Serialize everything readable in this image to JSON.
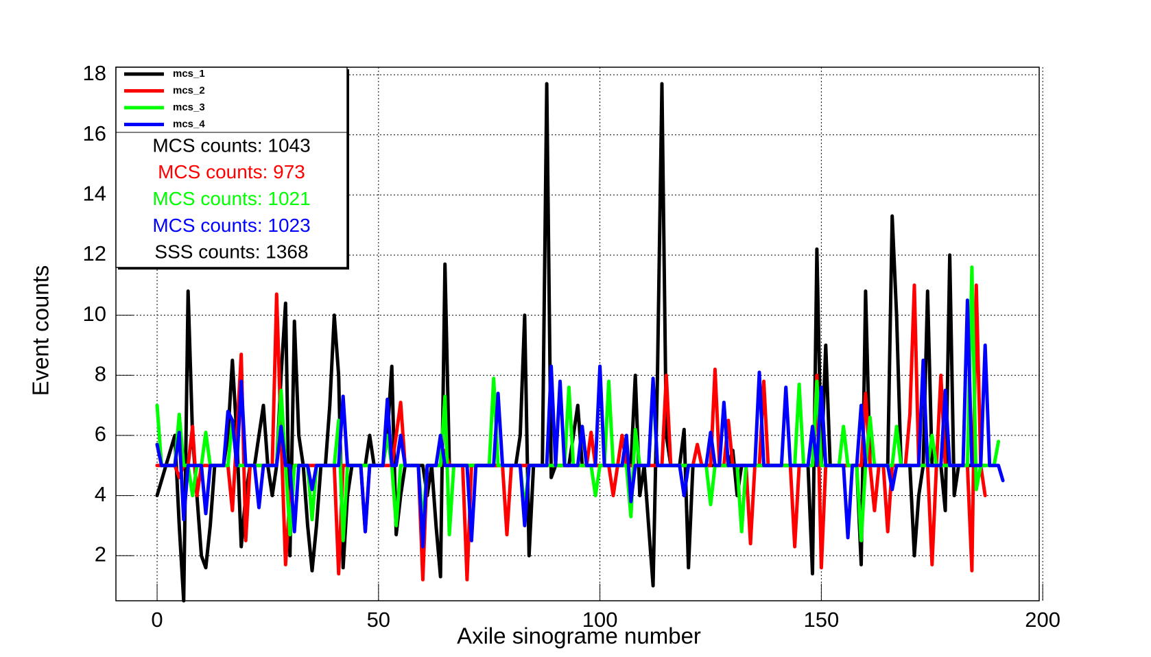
{
  "chart_data": {
    "type": "line",
    "xlabel": "Axile sinograme number",
    "ylabel": "Event counts",
    "xlim": [
      -9.3,
      199.2
    ],
    "ylim": [
      0.5,
      18.25
    ],
    "xticks": [
      0,
      50,
      100,
      150,
      200
    ],
    "yticks": [
      2,
      4,
      6,
      8,
      10,
      12,
      14,
      16,
      18
    ],
    "grid": true,
    "legend": "upper left",
    "x": [
      0,
      1,
      2,
      3,
      4,
      5,
      6,
      7,
      8,
      9,
      10,
      11,
      12,
      13,
      14,
      15,
      16,
      17,
      18,
      19,
      20,
      21,
      22,
      23,
      24,
      25,
      26,
      27,
      28,
      29,
      30,
      31,
      32,
      33,
      34,
      35,
      36,
      37,
      38,
      39,
      40,
      41,
      42,
      43,
      44,
      45,
      46,
      47,
      48,
      49,
      50,
      51,
      52,
      53,
      54,
      55,
      56,
      57,
      58,
      59,
      60,
      61,
      62,
      63,
      64,
      65,
      66,
      67,
      68,
      69,
      70,
      71,
      72,
      73,
      74,
      75,
      76,
      77,
      78,
      79,
      80,
      81,
      82,
      83,
      84,
      85,
      86,
      87,
      88,
      89,
      90,
      91,
      92,
      93,
      94,
      95,
      96,
      97,
      98,
      99,
      100,
      101,
      102,
      103,
      104,
      105,
      106,
      107,
      108,
      109,
      110,
      111,
      112,
      113,
      114,
      115,
      116,
      117,
      118,
      119,
      120,
      121,
      122,
      123,
      124,
      125,
      126,
      127,
      128,
      129,
      130,
      131,
      132,
      133,
      134,
      135,
      136,
      137,
      138,
      139,
      140,
      141,
      142,
      143,
      144,
      145,
      146,
      147,
      148,
      149,
      150,
      151,
      152,
      153,
      154,
      155,
      156,
      157,
      158,
      159,
      160,
      161,
      162,
      163,
      164,
      165,
      166,
      167,
      168,
      169,
      170,
      171,
      172,
      173,
      174,
      175,
      176,
      177,
      178,
      179,
      180,
      181,
      182,
      183,
      184,
      185,
      186,
      187,
      188,
      189,
      190,
      191
    ],
    "series": [
      {
        "name": "mcs_1",
        "color": "#000000",
        "values": [
          4,
          4.5,
          5,
          5.5,
          6,
          3,
          0.5,
          10.8,
          6,
          4,
          2,
          1.6,
          3,
          5,
          5,
          5,
          6,
          8.5,
          6,
          2.3,
          4,
          5,
          5,
          6,
          7,
          5,
          4,
          5,
          8,
          10.4,
          2,
          9.8,
          6,
          5,
          3,
          1.5,
          3,
          5,
          5,
          7,
          10,
          8,
          1.6,
          4,
          5,
          5,
          5,
          5,
          6,
          5,
          5,
          5,
          6,
          8.3,
          2.7,
          4,
          5,
          5,
          5,
          5,
          5,
          4,
          5,
          3,
          1.3,
          11.7,
          5,
          5,
          5,
          5,
          5,
          5,
          5,
          5,
          5,
          5,
          5,
          5,
          5,
          5,
          5,
          5,
          6,
          10,
          2,
          5,
          5,
          5,
          17.7,
          4.6,
          5,
          5,
          5,
          5,
          6,
          7,
          5,
          5,
          5,
          5,
          5,
          5,
          5,
          5,
          5,
          5,
          5,
          5,
          8,
          4,
          5,
          3,
          1,
          8,
          17.7,
          6,
          5,
          5,
          5,
          6.2,
          1.6,
          5,
          5,
          5,
          5,
          5,
          5,
          5,
          5,
          5,
          5.5,
          4,
          5,
          5,
          5,
          5,
          5,
          5,
          5,
          5,
          5,
          5,
          5,
          5,
          5,
          5,
          5,
          5,
          1.4,
          12.2,
          5,
          9,
          5,
          5,
          5,
          5,
          5,
          5,
          5,
          1.7,
          10.8,
          5,
          5,
          5,
          5,
          5,
          13.3,
          10,
          5,
          5,
          5,
          2,
          4,
          5,
          10.8,
          5,
          5,
          5,
          3.5,
          12,
          4,
          5,
          5,
          5,
          5,
          5,
          5,
          5,
          null,
          null,
          null,
          null
        ]
      },
      {
        "name": "mcs_2",
        "color": "#ff0000",
        "values": [
          5,
          5,
          5,
          5,
          5,
          4.6,
          5,
          5,
          6.3,
          4,
          5,
          5,
          5,
          5,
          5,
          5,
          5,
          3.5,
          6,
          8.7,
          2.5,
          5,
          5,
          5,
          5,
          5,
          5,
          10.7,
          6,
          1.7,
          4,
          5,
          5,
          5,
          5,
          5,
          5,
          5,
          5,
          5,
          5,
          1.4,
          5,
          5,
          5,
          5,
          5,
          2.8,
          5,
          5,
          5,
          5,
          5,
          5,
          6,
          7.1,
          5,
          5,
          5,
          5,
          1.2,
          5,
          5,
          5,
          5,
          5.5,
          5,
          5,
          5,
          5,
          1.2,
          5,
          5,
          5,
          5,
          5,
          5,
          5,
          5,
          2.7,
          5,
          5,
          5,
          5,
          5,
          5,
          5,
          5,
          5,
          5,
          5,
          5,
          5,
          5,
          5,
          5,
          5,
          5,
          6.1,
          5,
          5,
          5,
          5,
          4,
          5,
          6,
          5,
          5,
          5,
          5,
          5,
          5,
          5,
          5,
          5,
          8,
          5,
          5,
          5,
          5,
          5,
          5,
          5.7,
          5,
          5,
          5,
          8.2,
          5,
          5,
          6.5,
          5,
          5,
          5,
          5,
          2.4,
          5,
          5,
          7.8,
          5,
          5,
          5,
          5,
          5,
          5,
          2.3,
          5,
          5,
          5,
          5,
          8,
          1.6,
          5,
          5,
          5,
          5,
          5,
          5,
          5,
          5,
          5,
          7.4,
          5,
          3.5,
          5,
          5,
          2.8,
          5,
          5,
          5,
          5,
          6.7,
          11,
          5,
          5,
          5,
          1.7,
          5,
          8,
          5,
          5,
          5,
          5,
          5,
          5,
          1.5,
          11,
          5,
          4,
          null,
          null,
          null,
          null
        ]
      },
      {
        "name": "mcs_3",
        "color": "#00ff00",
        "values": [
          7,
          5,
          5,
          5,
          5,
          6.7,
          5,
          5,
          4,
          5,
          5,
          6.1,
          5,
          5,
          5,
          5,
          5,
          6.5,
          5,
          5,
          5,
          5,
          5,
          5,
          5,
          5,
          5,
          5,
          7.5,
          5,
          2.7,
          5,
          5,
          5,
          5,
          3.2,
          5,
          5,
          5,
          5,
          5,
          6.5,
          2.5,
          5,
          5,
          5,
          5,
          5,
          5,
          5,
          5,
          5,
          6,
          5,
          3,
          5,
          5,
          5,
          5,
          5,
          3,
          5,
          5,
          5,
          5,
          7.3,
          2.7,
          5,
          5,
          5,
          5,
          5,
          5,
          5,
          5,
          5,
          7.9,
          5,
          5,
          5,
          5,
          5,
          5,
          3.5,
          5,
          5,
          5,
          5,
          5,
          5,
          5,
          5,
          5,
          7.6,
          5,
          5,
          5,
          5,
          5,
          4,
          5,
          5,
          7.8,
          5,
          5,
          5,
          5,
          3.3,
          6.2,
          5,
          5,
          5,
          7.7,
          5,
          5,
          5,
          5,
          5,
          5,
          5,
          5,
          5,
          5,
          5,
          5,
          3.7,
          5,
          5,
          5,
          5,
          5,
          5,
          2.8,
          5,
          5,
          5,
          5,
          5,
          5,
          5,
          5,
          5,
          5,
          5,
          5,
          7.7,
          5,
          5,
          5,
          7.8,
          5,
          5,
          5,
          5,
          5,
          6.3,
          5,
          5,
          5,
          2.5,
          5,
          6.6,
          5,
          5,
          5,
          5,
          5,
          6.3,
          5,
          5,
          5,
          5,
          5,
          5,
          5,
          6,
          5,
          5,
          5,
          5,
          5,
          5,
          5,
          5,
          11.6,
          4.2,
          5,
          5,
          5,
          5,
          5.8,
          null
        ]
      },
      {
        "name": "mcs_4",
        "color": "#0000ff",
        "values": [
          5.7,
          5,
          5,
          5,
          5,
          6.1,
          3.2,
          5,
          5,
          5,
          5,
          3.4,
          5,
          5,
          5,
          5,
          6.8,
          6.5,
          5,
          7.8,
          5,
          5,
          5,
          3.6,
          5,
          5,
          5,
          5,
          6.3,
          5,
          5,
          2.8,
          5,
          5,
          5,
          4.2,
          5,
          5,
          5,
          5,
          5,
          5,
          7.3,
          5,
          5,
          5,
          5,
          2.8,
          5,
          5,
          5,
          5,
          7.2,
          5,
          5,
          6,
          5,
          5,
          5,
          5,
          2.3,
          5,
          5,
          5,
          6,
          5,
          5,
          5,
          5,
          5,
          5,
          2.5,
          5,
          5,
          5,
          5,
          5,
          7.4,
          5,
          5,
          5,
          5,
          5,
          3,
          5,
          5,
          5,
          5,
          5,
          8.3,
          5,
          7.8,
          5,
          5,
          5,
          5,
          6.3,
          5,
          5,
          5,
          8.3,
          5,
          5,
          5,
          5,
          5,
          6,
          3.8,
          5,
          5,
          5,
          5,
          7.9,
          5,
          5,
          5,
          5,
          5,
          5,
          4,
          5,
          5,
          5,
          5,
          5,
          6.1,
          5,
          5,
          7.1,
          5,
          5,
          5,
          5,
          5,
          5,
          5,
          8.1,
          5,
          5,
          5,
          5,
          5,
          7.6,
          5,
          5,
          5,
          5,
          5,
          6.3,
          5,
          7.6,
          5,
          5,
          5,
          5,
          5,
          2.6,
          5,
          5,
          7,
          5,
          5,
          5,
          5,
          5,
          5,
          4.2,
          5,
          5,
          5,
          5,
          5,
          5,
          8.5,
          5,
          5,
          5,
          5,
          7.5,
          5,
          5,
          5,
          5,
          10.5,
          5,
          5,
          5,
          9,
          5,
          5,
          5,
          4.5
        ]
      }
    ],
    "annotations": [
      {
        "text": "MCS counts: 1043",
        "color": "#000000"
      },
      {
        "text": "MCS counts: 973",
        "color": "#ff0000"
      },
      {
        "text": "MCS counts: 1021",
        "color": "#00ff00"
      },
      {
        "text": "MCS counts: 1023",
        "color": "#0000ff"
      },
      {
        "text": "SSS counts: 1368",
        "color": "#000000"
      }
    ]
  }
}
